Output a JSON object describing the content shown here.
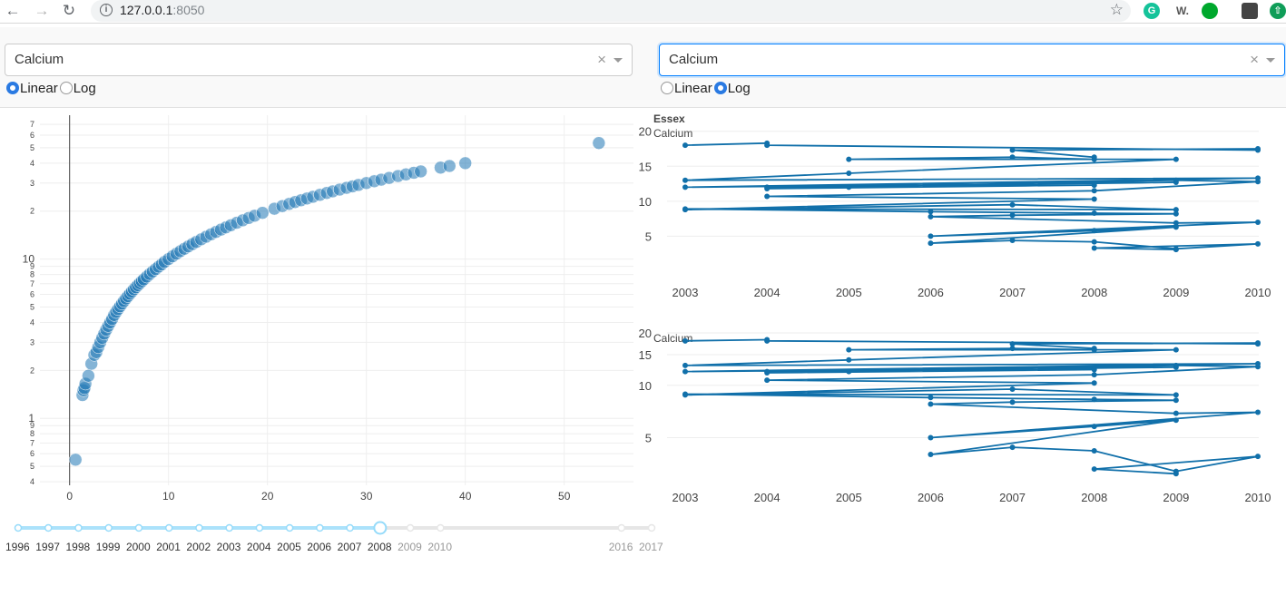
{
  "browser": {
    "url_host": "127.0.0.1",
    "url_port": ":8050",
    "icons": [
      "back-arrow-icon",
      "forward-arrow-icon",
      "reload-icon",
      "info-icon",
      "star-icon",
      "grammarly-icon",
      "wordtune-icon",
      "evernote-icon",
      "profile-avatar",
      "extension-icon"
    ],
    "ext_w_label": "W."
  },
  "left_panel": {
    "dropdown_value": "Calcium",
    "radio_options": [
      "Linear",
      "Log"
    ],
    "radio_selected": "Linear"
  },
  "right_panel": {
    "dropdown_value": "Calcium",
    "radio_options": [
      "Linear",
      "Log"
    ],
    "radio_selected": "Log"
  },
  "scatter": {
    "x_ticks": [
      "0",
      "10",
      "20",
      "30",
      "40",
      "50"
    ],
    "x_tick_values": [
      0,
      10,
      20,
      30,
      40,
      50
    ],
    "y_major_labels": [
      "10",
      "1"
    ],
    "y_minor_labels": [
      "7",
      "6",
      "5",
      "4",
      "3",
      "2",
      "9",
      "8",
      "7",
      "6",
      "5",
      "4",
      "3",
      "2",
      "9",
      "8",
      "7",
      "6",
      "5",
      "4"
    ],
    "point_color": "#1f77b4"
  },
  "chart_data": [
    {
      "type": "scatter",
      "title": "",
      "xlabel": "",
      "ylabel": "",
      "y_scale": "log",
      "xlim": [
        -3,
        57
      ],
      "ylim": [
        0.38,
        80
      ],
      "points": [
        [
          0.6,
          0.55
        ],
        [
          1.3,
          1.4
        ],
        [
          1.4,
          1.5
        ],
        [
          1.5,
          1.55
        ],
        [
          1.6,
          1.65
        ],
        [
          1.9,
          1.85
        ],
        [
          2.2,
          2.2
        ],
        [
          2.5,
          2.5
        ],
        [
          2.7,
          2.6
        ],
        [
          2.9,
          2.8
        ],
        [
          3.1,
          3.0
        ],
        [
          3.3,
          3.2
        ],
        [
          3.5,
          3.4
        ],
        [
          3.7,
          3.6
        ],
        [
          3.9,
          3.8
        ],
        [
          4.1,
          4.0
        ],
        [
          4.3,
          4.2
        ],
        [
          4.5,
          4.45
        ],
        [
          4.7,
          4.65
        ],
        [
          4.9,
          4.85
        ],
        [
          5.1,
          5.05
        ],
        [
          5.3,
          5.25
        ],
        [
          5.5,
          5.45
        ],
        [
          5.7,
          5.65
        ],
        [
          5.9,
          5.85
        ],
        [
          6.1,
          6.05
        ],
        [
          6.3,
          6.25
        ],
        [
          6.5,
          6.45
        ],
        [
          6.7,
          6.65
        ],
        [
          6.9,
          6.85
        ],
        [
          7.1,
          7.05
        ],
        [
          7.3,
          7.25
        ],
        [
          7.5,
          7.45
        ],
        [
          7.8,
          7.75
        ],
        [
          8.1,
          8.05
        ],
        [
          8.4,
          8.35
        ],
        [
          8.7,
          8.65
        ],
        [
          9.0,
          8.95
        ],
        [
          9.3,
          9.25
        ],
        [
          9.6,
          9.6
        ],
        [
          10.0,
          10.0
        ],
        [
          10.4,
          10.4
        ],
        [
          10.8,
          10.8
        ],
        [
          11.2,
          11.2
        ],
        [
          11.6,
          11.6
        ],
        [
          12.0,
          12.0
        ],
        [
          12.4,
          12.4
        ],
        [
          12.8,
          12.8
        ],
        [
          13.3,
          13.3
        ],
        [
          13.8,
          13.8
        ],
        [
          14.3,
          14.3
        ],
        [
          14.8,
          14.8
        ],
        [
          15.3,
          15.3
        ],
        [
          15.8,
          15.8
        ],
        [
          16.3,
          16.3
        ],
        [
          16.9,
          16.9
        ],
        [
          17.5,
          17.5
        ],
        [
          18.1,
          18.1
        ],
        [
          18.7,
          18.7
        ],
        [
          19.5,
          19.5
        ],
        [
          20.7,
          20.7
        ],
        [
          21.5,
          21.5
        ],
        [
          22.2,
          22.2
        ],
        [
          22.8,
          22.8
        ],
        [
          23.4,
          23.4
        ],
        [
          24.0,
          24.0
        ],
        [
          24.6,
          24.6
        ],
        [
          25.3,
          25.3
        ],
        [
          26.0,
          26.0
        ],
        [
          26.6,
          26.6
        ],
        [
          27.3,
          27.3
        ],
        [
          28.0,
          28.0
        ],
        [
          28.6,
          28.6
        ],
        [
          29.2,
          29.2
        ],
        [
          30.0,
          30.0
        ],
        [
          30.8,
          30.8
        ],
        [
          31.5,
          31.5
        ],
        [
          32.3,
          32.3
        ],
        [
          33.2,
          33.2
        ],
        [
          34.0,
          34.0
        ],
        [
          34.8,
          34.8
        ],
        [
          35.5,
          35.5
        ],
        [
          37.5,
          37.5
        ],
        [
          38.4,
          38.4
        ],
        [
          40.0,
          40.0
        ],
        [
          53.5,
          53.5
        ]
      ]
    },
    {
      "type": "line",
      "title": "Essex",
      "series": [
        {
          "name": "Calcium"
        }
      ],
      "y_scale": "linear",
      "ylim": [
        0,
        21
      ],
      "x_ticks": [
        "2003",
        "2004",
        "2005",
        "2006",
        "2007",
        "2008",
        "2009",
        "2010"
      ],
      "y_ticks": [
        "5",
        "10",
        "15",
        "20"
      ],
      "x": [
        2003,
        2004,
        2004,
        2010,
        2010,
        2007,
        2008,
        2008,
        2007,
        2005,
        2009,
        2005,
        2003,
        2010,
        2003,
        2009,
        2004,
        2005,
        2008,
        2004,
        2009,
        2010,
        2008,
        2004,
        2008,
        2003,
        2007,
        2009,
        2003,
        2006,
        2008,
        2009,
        2007,
        2006,
        2009,
        2010,
        2006,
        2008,
        2009,
        2006,
        2007,
        2008,
        2009,
        2010,
        2008,
        2009
      ],
      "y": [
        18.0,
        18.3,
        18.0,
        17.3,
        17.5,
        17.3,
        16.3,
        16.0,
        16.3,
        16.0,
        16.0,
        14.0,
        13.0,
        13.3,
        12.0,
        12.7,
        12.0,
        12.0,
        12.3,
        11.8,
        13.0,
        12.8,
        11.5,
        10.7,
        10.3,
        8.8,
        9.5,
        8.8,
        8.9,
        8.5,
        8.3,
        8.2,
        8.0,
        7.8,
        6.9,
        7.0,
        5.0,
        5.8,
        6.3,
        4.0,
        4.4,
        4.2,
        3.2,
        3.9,
        3.3,
        3.1
      ]
    },
    {
      "type": "line",
      "title": "",
      "series": [
        {
          "name": "Calcium"
        }
      ],
      "y_scale": "log",
      "ylim": [
        3,
        21
      ],
      "x_ticks": [
        "2003",
        "2004",
        "2005",
        "2006",
        "2007",
        "2008",
        "2009",
        "2010"
      ],
      "y_ticks": [
        "5",
        "10",
        "15",
        "20"
      ],
      "x": [
        2003,
        2004,
        2004,
        2010,
        2010,
        2007,
        2008,
        2008,
        2007,
        2005,
        2009,
        2005,
        2003,
        2010,
        2003,
        2009,
        2004,
        2005,
        2008,
        2004,
        2009,
        2010,
        2008,
        2004,
        2008,
        2003,
        2007,
        2009,
        2003,
        2006,
        2008,
        2009,
        2007,
        2006,
        2009,
        2010,
        2006,
        2008,
        2009,
        2006,
        2007,
        2008,
        2009,
        2010,
        2008,
        2009
      ],
      "y": [
        18.0,
        18.3,
        18.0,
        17.3,
        17.5,
        17.3,
        16.3,
        16.0,
        16.3,
        16.0,
        16.0,
        14.0,
        13.0,
        13.3,
        12.0,
        12.7,
        12.0,
        12.0,
        12.3,
        11.8,
        13.0,
        12.8,
        11.5,
        10.7,
        10.3,
        8.8,
        9.5,
        8.8,
        8.9,
        8.5,
        8.3,
        8.2,
        8.0,
        7.8,
        6.9,
        7.0,
        5.0,
        5.8,
        6.3,
        4.0,
        4.4,
        4.2,
        3.2,
        3.9,
        3.3,
        3.1
      ]
    }
  ],
  "year_slider": {
    "labels": [
      "1996",
      "1997",
      "1998",
      "1999",
      "2000",
      "2001",
      "2002",
      "2003",
      "2004",
      "2005",
      "2006",
      "2007",
      "2008",
      "2009",
      "2010",
      "2016",
      "2017"
    ],
    "selected": "2008"
  }
}
